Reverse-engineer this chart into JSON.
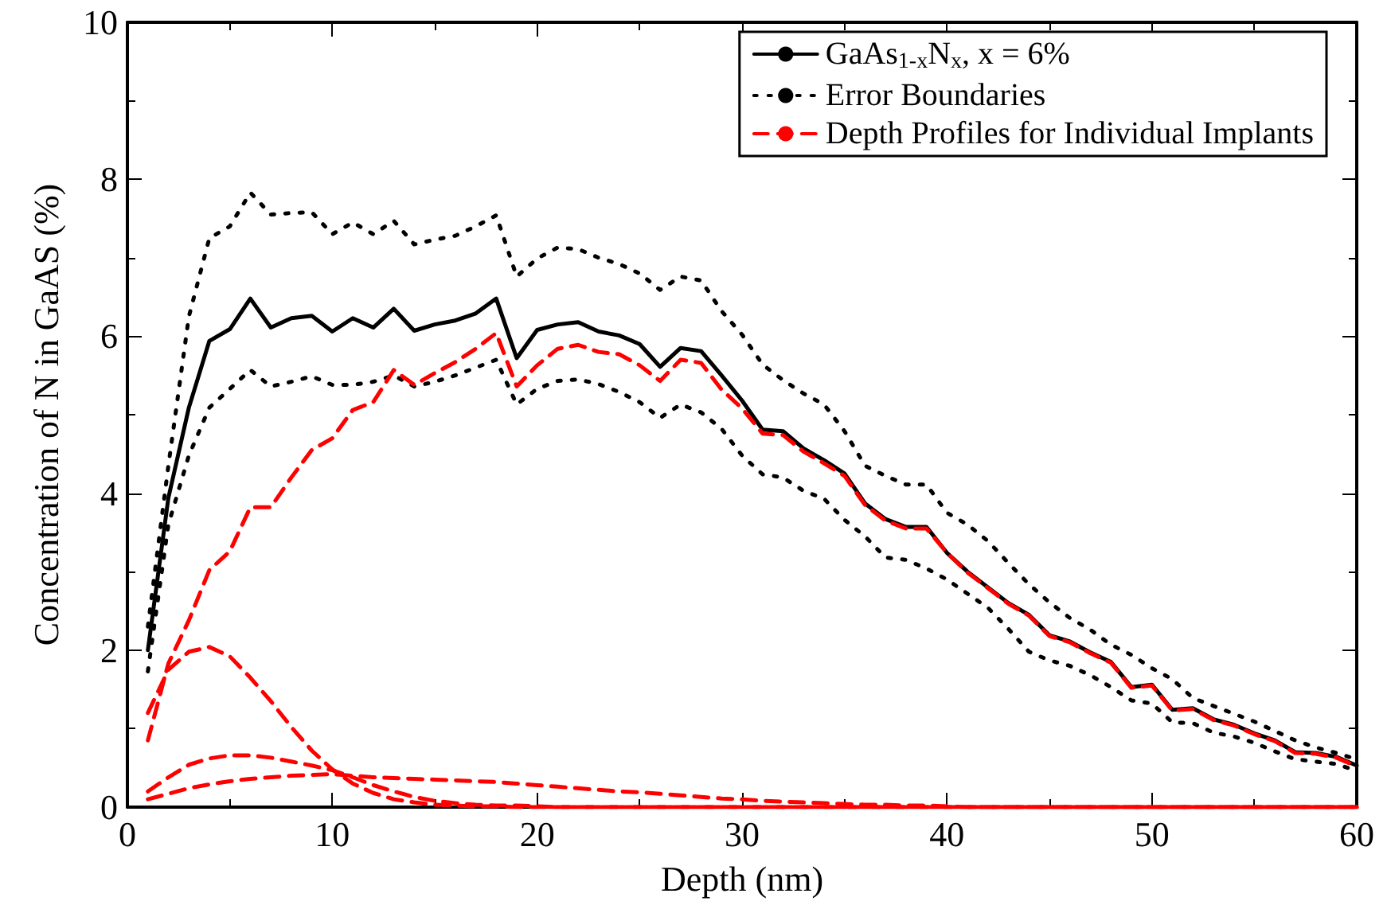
{
  "chart_data": {
    "type": "line",
    "xlabel": "Depth (nm)",
    "ylabel": "Concentration of N in GaAS (%)",
    "xlim": [
      0,
      60
    ],
    "xticks": [
      0,
      10,
      20,
      30,
      40,
      50,
      60
    ],
    "ylim": [
      0,
      10
    ],
    "yticks": [
      0,
      2,
      4,
      6,
      8,
      10
    ],
    "grid": false,
    "legend": "top right",
    "marker": "none",
    "x": [
      1,
      2,
      3,
      4,
      5,
      6,
      7,
      8,
      9,
      10,
      11,
      12,
      13,
      14,
      15,
      16,
      17,
      18,
      19,
      20,
      21,
      22,
      23,
      24,
      25,
      26,
      27,
      28,
      29,
      30,
      31,
      32,
      33,
      34,
      35,
      36,
      37,
      38,
      39,
      40,
      41,
      42,
      43,
      44,
      45,
      46,
      47,
      48,
      49,
      50,
      51,
      52,
      53,
      54,
      55,
      56,
      57,
      58,
      59,
      60
    ],
    "series": [
      {
        "name": "GaAs$_{1-x}$N$_{x}$, x = 6%",
        "color": "#000000",
        "line_style": "solid",
        "values": [
          2.0,
          3.94,
          5.09,
          5.94,
          6.09,
          6.48,
          6.11,
          6.23,
          6.26,
          6.06,
          6.23,
          6.11,
          6.35,
          6.07,
          6.15,
          6.2,
          6.29,
          6.48,
          5.72,
          6.08,
          6.15,
          6.18,
          6.06,
          6.01,
          5.9,
          5.61,
          5.85,
          5.81,
          5.5,
          5.18,
          4.81,
          4.79,
          4.57,
          4.42,
          4.25,
          3.87,
          3.67,
          3.57,
          3.57,
          3.24,
          3.0,
          2.8,
          2.6,
          2.45,
          2.19,
          2.11,
          1.97,
          1.85,
          1.53,
          1.56,
          1.24,
          1.26,
          1.12,
          1.05,
          0.94,
          0.85,
          0.7,
          0.69,
          0.64,
          0.53
        ]
      },
      {
        "name": "Error Boundaries",
        "color": "#000000",
        "line_style": "dotted",
        "values": [
          2.3,
          4.35,
          6.25,
          7.25,
          7.4,
          7.83,
          7.55,
          7.57,
          7.58,
          7.3,
          7.45,
          7.3,
          7.47,
          7.17,
          7.23,
          7.28,
          7.4,
          7.54,
          6.76,
          6.99,
          7.13,
          7.11,
          7.0,
          6.92,
          6.8,
          6.59,
          6.76,
          6.71,
          6.32,
          6.02,
          5.64,
          5.44,
          5.27,
          5.13,
          4.79,
          4.35,
          4.22,
          4.11,
          4.11,
          3.75,
          3.6,
          3.39,
          3.11,
          2.84,
          2.61,
          2.41,
          2.26,
          2.07,
          1.94,
          1.77,
          1.63,
          1.39,
          1.29,
          1.19,
          1.09,
          0.97,
          0.85,
          0.76,
          0.69,
          0.61
        ]
      },
      {
        "color": "#000000",
        "line_style": "dotted",
        "values": [
          1.73,
          3.6,
          4.48,
          5.09,
          5.33,
          5.57,
          5.36,
          5.42,
          5.49,
          5.38,
          5.38,
          5.42,
          5.5,
          5.36,
          5.42,
          5.5,
          5.6,
          5.7,
          5.13,
          5.33,
          5.43,
          5.45,
          5.39,
          5.29,
          5.16,
          4.96,
          5.13,
          5.03,
          4.82,
          4.48,
          4.24,
          4.2,
          4.03,
          3.93,
          3.66,
          3.45,
          3.18,
          3.15,
          3.04,
          2.9,
          2.72,
          2.54,
          2.27,
          1.98,
          1.87,
          1.8,
          1.68,
          1.53,
          1.36,
          1.32,
          1.08,
          1.07,
          0.95,
          0.9,
          0.82,
          0.71,
          0.61,
          0.58,
          0.55,
          0.46
        ]
      },
      {
        "name": "Depth Profiles for Individual Implants",
        "color": "#ff0000",
        "line_style": "dashed",
        "values": [
          0.85,
          1.83,
          2.38,
          3.02,
          3.26,
          3.82,
          3.82,
          4.2,
          4.55,
          4.7,
          5.06,
          5.16,
          5.57,
          5.38,
          5.53,
          5.67,
          5.84,
          6.04,
          5.36,
          5.63,
          5.84,
          5.89,
          5.8,
          5.77,
          5.63,
          5.43,
          5.7,
          5.66,
          5.32,
          5.08,
          4.76,
          4.74,
          4.53,
          4.38,
          4.22,
          3.85,
          3.65,
          3.55,
          3.55,
          3.24,
          2.99,
          2.79,
          2.59,
          2.44,
          2.18,
          2.1,
          1.96,
          1.84,
          1.52,
          1.55,
          1.23,
          1.25,
          1.11,
          1.04,
          0.93,
          0.84,
          0.69,
          0.68,
          0.63,
          0.52
        ]
      },
      {
        "color": "#ff0000",
        "line_style": "dashed",
        "values": [
          1.2,
          1.75,
          1.98,
          2.04,
          1.92,
          1.65,
          1.35,
          1.02,
          0.72,
          0.48,
          0.3,
          0.18,
          0.1,
          0.06,
          0.03,
          0.02,
          0.01,
          0.01,
          0,
          0,
          0,
          0,
          0,
          0,
          0,
          0,
          0,
          0,
          0,
          0,
          0,
          0,
          0,
          0,
          0,
          0,
          0,
          0,
          0,
          0,
          0,
          0,
          0,
          0,
          0,
          0,
          0,
          0,
          0,
          0,
          0,
          0,
          0,
          0,
          0,
          0,
          0,
          0,
          0,
          0
        ]
      },
      {
        "color": "#ff0000",
        "line_style": "dashed",
        "values": [
          0.2,
          0.38,
          0.54,
          0.62,
          0.66,
          0.66,
          0.63,
          0.58,
          0.53,
          0.47,
          0.38,
          0.28,
          0.2,
          0.13,
          0.08,
          0.05,
          0.03,
          0.02,
          0.02,
          0.01,
          0,
          0,
          0,
          0,
          0,
          0,
          0,
          0,
          0,
          0,
          0,
          0,
          0,
          0,
          0,
          0,
          0,
          0,
          0,
          0,
          0,
          0,
          0,
          0,
          0,
          0,
          0,
          0,
          0,
          0,
          0,
          0,
          0,
          0,
          0,
          0,
          0,
          0,
          0,
          0
        ]
      },
      {
        "color": "#ff0000",
        "line_style": "dashed",
        "values": [
          0.1,
          0.17,
          0.24,
          0.29,
          0.33,
          0.36,
          0.38,
          0.4,
          0.41,
          0.42,
          0.4,
          0.38,
          0.37,
          0.36,
          0.35,
          0.34,
          0.33,
          0.32,
          0.3,
          0.28,
          0.26,
          0.24,
          0.22,
          0.2,
          0.19,
          0.17,
          0.15,
          0.13,
          0.11,
          0.1,
          0.08,
          0.07,
          0.06,
          0.05,
          0.04,
          0.03,
          0.03,
          0.02,
          0.02,
          0.01,
          0,
          0,
          0,
          0,
          0,
          0,
          0,
          0,
          0,
          0,
          0,
          0,
          0,
          0,
          0,
          0,
          0,
          0,
          0,
          0
        ]
      }
    ]
  }
}
